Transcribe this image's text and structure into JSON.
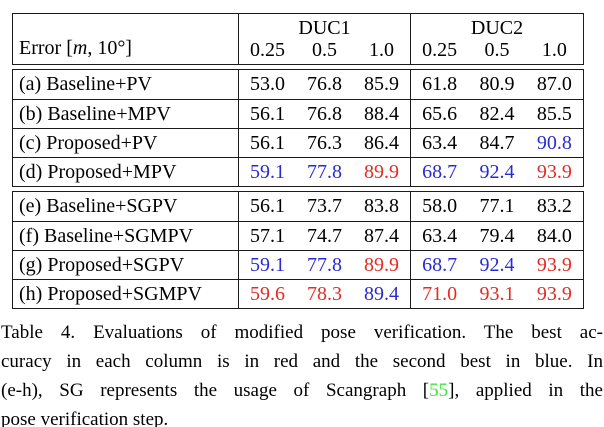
{
  "colors": {
    "background": "#ffffff",
    "text": "#000000",
    "border": "#1c1c1c",
    "best_red": "#e22c24",
    "second_blue": "#2a2ad2",
    "citation_green": "#38e838"
  },
  "table": {
    "header": {
      "row_label": {
        "prefix": "Error [",
        "italic": "m",
        "suffix": ", 10°]"
      },
      "groups": [
        {
          "title": "DUC1",
          "thresholds": [
            "0.25",
            "0.5",
            "1.0"
          ]
        },
        {
          "title": "DUC2",
          "thresholds": [
            "0.25",
            "0.5",
            "1.0"
          ]
        }
      ]
    },
    "blocks": [
      {
        "rows": [
          {
            "label": "(a) Baseline+PV",
            "values": [
              {
                "v": "53.0",
                "c": "k"
              },
              {
                "v": "76.8",
                "c": "k"
              },
              {
                "v": "85.9",
                "c": "k"
              },
              {
                "v": "61.8",
                "c": "k"
              },
              {
                "v": "80.9",
                "c": "k"
              },
              {
                "v": "87.0",
                "c": "k"
              }
            ]
          },
          {
            "label": "(b) Baseline+MPV",
            "values": [
              {
                "v": "56.1",
                "c": "k"
              },
              {
                "v": "76.8",
                "c": "k"
              },
              {
                "v": "88.4",
                "c": "k"
              },
              {
                "v": "65.6",
                "c": "k"
              },
              {
                "v": "82.4",
                "c": "k"
              },
              {
                "v": "85.5",
                "c": "k"
              }
            ]
          },
          {
            "label": "(c) Proposed+PV",
            "values": [
              {
                "v": "56.1",
                "c": "k"
              },
              {
                "v": "76.3",
                "c": "k"
              },
              {
                "v": "86.4",
                "c": "k"
              },
              {
                "v": "63.4",
                "c": "k"
              },
              {
                "v": "84.7",
                "c": "k"
              },
              {
                "v": "90.8",
                "c": "b"
              }
            ]
          },
          {
            "label": "(d) Proposed+MPV",
            "values": [
              {
                "v": "59.1",
                "c": "b"
              },
              {
                "v": "77.8",
                "c": "b"
              },
              {
                "v": "89.9",
                "c": "r"
              },
              {
                "v": "68.7",
                "c": "b"
              },
              {
                "v": "92.4",
                "c": "b"
              },
              {
                "v": "93.9",
                "c": "r"
              }
            ]
          }
        ]
      },
      {
        "rows": [
          {
            "label": "(e) Baseline+SGPV",
            "values": [
              {
                "v": "56.1",
                "c": "k"
              },
              {
                "v": "73.7",
                "c": "k"
              },
              {
                "v": "83.8",
                "c": "k"
              },
              {
                "v": "58.0",
                "c": "k"
              },
              {
                "v": "77.1",
                "c": "k"
              },
              {
                "v": "83.2",
                "c": "k"
              }
            ]
          },
          {
            "label": "(f) Baseline+SGMPV",
            "values": [
              {
                "v": "57.1",
                "c": "k"
              },
              {
                "v": "74.7",
                "c": "k"
              },
              {
                "v": "87.4",
                "c": "k"
              },
              {
                "v": "63.4",
                "c": "k"
              },
              {
                "v": "79.4",
                "c": "k"
              },
              {
                "v": "84.0",
                "c": "k"
              }
            ]
          },
          {
            "label": "(g) Proposed+SGPV",
            "values": [
              {
                "v": "59.1",
                "c": "b"
              },
              {
                "v": "77.8",
                "c": "b"
              },
              {
                "v": "89.9",
                "c": "r"
              },
              {
                "v": "68.7",
                "c": "b"
              },
              {
                "v": "92.4",
                "c": "b"
              },
              {
                "v": "93.9",
                "c": "r"
              }
            ]
          },
          {
            "label": "(h) Proposed+SGMPV",
            "values": [
              {
                "v": "59.6",
                "c": "r"
              },
              {
                "v": "78.3",
                "c": "r"
              },
              {
                "v": "89.4",
                "c": "b"
              },
              {
                "v": "71.0",
                "c": "r"
              },
              {
                "v": "93.1",
                "c": "r"
              },
              {
                "v": "93.9",
                "c": "r"
              }
            ]
          }
        ]
      }
    ]
  },
  "caption": {
    "lines": [
      [
        {
          "t": "Table 4. Evaluations of modified pose verification.  The best ac-"
        }
      ],
      [
        {
          "t": "curacy in each column is in red and the second best in blue.  In"
        }
      ],
      [
        {
          "t": "(e-h), SG represents the usage of Scangraph ["
        },
        {
          "t": "55",
          "c": "citation"
        },
        {
          "t": "], applied in the"
        }
      ],
      [
        {
          "t": "pose verification step."
        }
      ]
    ]
  }
}
